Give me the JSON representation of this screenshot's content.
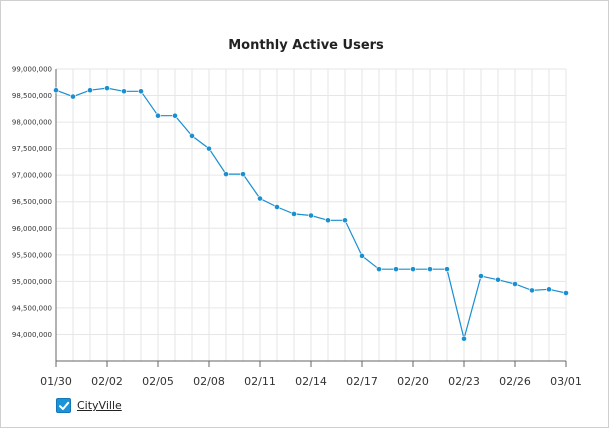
{
  "chart_data": {
    "type": "line",
    "title": "Monthly Active Users",
    "xlabel": "",
    "ylabel": "",
    "ylim": [
      93500000,
      99000000
    ],
    "y_ticks": [
      94000000,
      94500000,
      95000000,
      95500000,
      96000000,
      96500000,
      97000000,
      97500000,
      98000000,
      98500000,
      99000000
    ],
    "y_tick_labels": [
      "94,000,000",
      "94,500,000",
      "95,000,000",
      "95,500,000",
      "96,000,000",
      "96,500,000",
      "97,000,000",
      "97,500,000",
      "98,000,000",
      "98,500,000",
      "99,000,000"
    ],
    "x_tick_labels": [
      "01/30",
      "02/02",
      "02/05",
      "02/08",
      "02/11",
      "02/14",
      "02/17",
      "02/20",
      "02/23",
      "02/26",
      "03/01"
    ],
    "x": [
      "01/30",
      "01/31",
      "02/01",
      "02/02",
      "02/03",
      "02/04",
      "02/05",
      "02/06",
      "02/07",
      "02/08",
      "02/09",
      "02/10",
      "02/11",
      "02/12",
      "02/13",
      "02/14",
      "02/15",
      "02/16",
      "02/17",
      "02/18",
      "02/19",
      "02/20",
      "02/21",
      "02/22",
      "02/23",
      "02/24",
      "02/25",
      "02/26",
      "02/27",
      "02/28",
      "03/01"
    ],
    "grid": true,
    "legend_position": "bottom-left",
    "series": [
      {
        "name": "CityVille",
        "color": "#1a8fd0",
        "values": [
          98600000,
          98480000,
          98600000,
          98640000,
          98580000,
          98580000,
          98120000,
          98120000,
          97740000,
          97500000,
          97020000,
          97020000,
          96560000,
          96400000,
          96270000,
          96240000,
          96150000,
          96150000,
          95480000,
          95230000,
          95230000,
          95230000,
          95230000,
          95230000,
          93920000,
          95100000,
          95030000,
          94950000,
          94830000,
          94850000,
          94780000
        ]
      }
    ]
  },
  "legend": {
    "items": [
      {
        "label": "CityVille",
        "checked": true
      }
    ]
  }
}
